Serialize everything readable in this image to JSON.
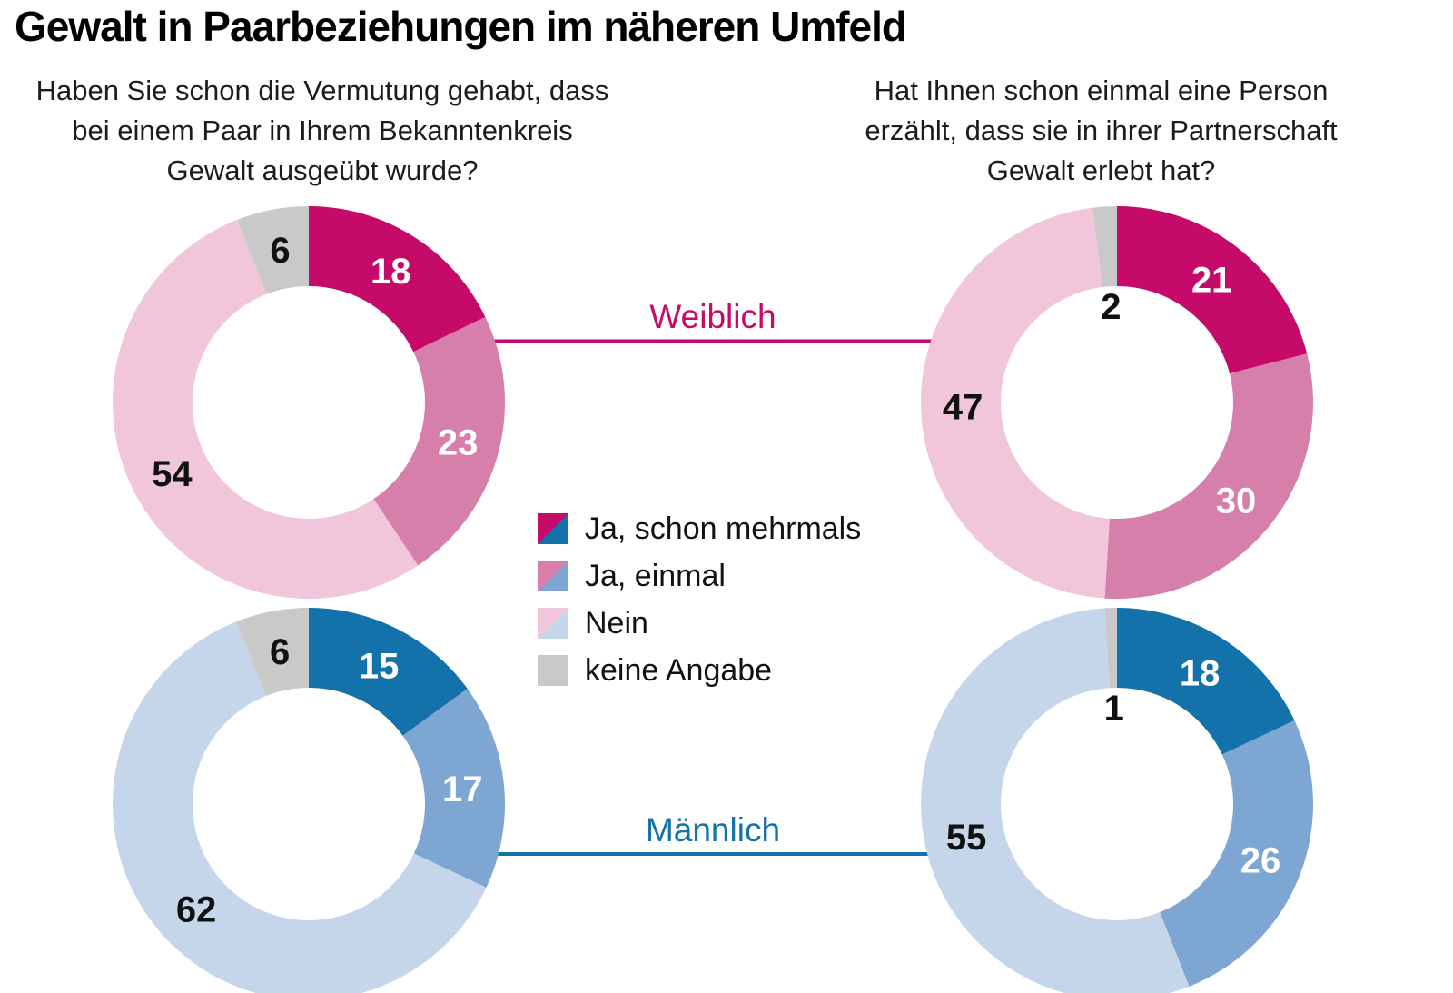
{
  "title": "Gewalt in Paarbeziehungen im näheren Umfeld",
  "questions": {
    "left": "Haben Sie schon die Vermutung gehabt, dass\nbei einem Paar in Ihrem Bekanntenkreis\nGewalt ausgeübt wurde?",
    "right": "Hat Ihnen schon einmal eine Person\nerzählt, dass sie in ihrer Partnerschaft\nGewalt erlebt hat?"
  },
  "rows": [
    {
      "label": "Weiblich",
      "color": "#c50a6a"
    },
    {
      "label": "Männlich",
      "color": "#1472ab"
    }
  ],
  "legend": {
    "items": [
      {
        "label": "Ja, schon mehrmals",
        "female_color": "#c50a6a",
        "male_color": "#1472ab"
      },
      {
        "label": "Ja, einmal",
        "female_color": "#d77fab",
        "male_color": "#7da7d2"
      },
      {
        "label": "Nein",
        "female_color": "#f1c6db",
        "male_color": "#c5d6eb"
      },
      {
        "label": "keine Angabe",
        "female_color": "#c9c9c9",
        "male_color": "#c9c9c9"
      }
    ]
  },
  "chart_data": [
    {
      "type": "donut",
      "gender": "Weiblich",
      "question": "Haben Sie schon die Vermutung gehabt, dass bei einem Paar in Ihrem Bekanntenkreis Gewalt ausgeübt wurde?",
      "categories": [
        "Ja, schon mehrmals",
        "Ja, einmal",
        "Nein",
        "keine Angabe"
      ],
      "values": [
        18,
        23,
        54,
        6
      ],
      "colors": [
        "#c50a6a",
        "#d77fab",
        "#f1c6db",
        "#c9c9c9"
      ]
    },
    {
      "type": "donut",
      "gender": "Weiblich",
      "question": "Hat Ihnen schon einmal eine Person erzählt, dass sie in ihrer Partnerschaft Gewalt erlebt hat?",
      "categories": [
        "Ja, schon mehrmals",
        "Ja, einmal",
        "Nein",
        "keine Angabe"
      ],
      "values": [
        21,
        30,
        47,
        2
      ],
      "colors": [
        "#c50a6a",
        "#d77fab",
        "#f1c6db",
        "#c9c9c9"
      ]
    },
    {
      "type": "donut",
      "gender": "Männlich",
      "question": "Haben Sie schon die Vermutung gehabt, dass bei einem Paar in Ihrem Bekanntenkreis Gewalt ausgeübt wurde?",
      "categories": [
        "Ja, schon mehrmals",
        "Ja, einmal",
        "Nein",
        "keine Angabe"
      ],
      "values": [
        15,
        17,
        62,
        6
      ],
      "colors": [
        "#1472ab",
        "#7da7d2",
        "#c5d6eb",
        "#c9c9c9"
      ]
    },
    {
      "type": "donut",
      "gender": "Männlich",
      "question": "Hat Ihnen schon einmal eine Person erzählt, dass sie in ihrer Partnerschaft Gewalt erlebt hat?",
      "categories": [
        "Ja, schon mehrmals",
        "Ja, einmal",
        "Nein",
        "keine Angabe"
      ],
      "values": [
        18,
        26,
        55,
        1
      ],
      "colors": [
        "#1472ab",
        "#7da7d2",
        "#c5d6eb",
        "#c9c9c9"
      ]
    }
  ]
}
